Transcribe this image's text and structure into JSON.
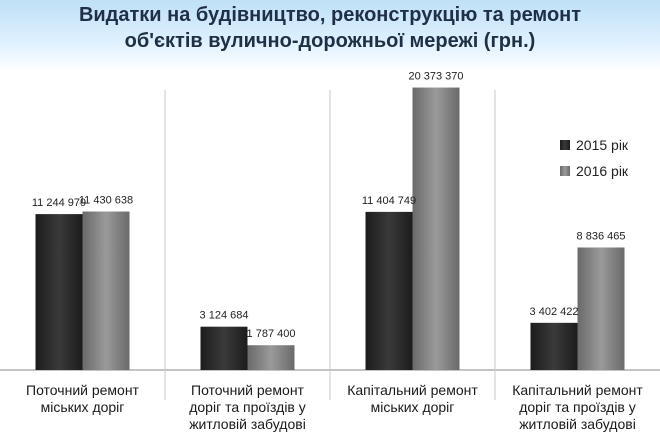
{
  "chart_data": {
    "type": "bar",
    "title": "Видатки на  будівництво, реконструкцію та ремонт об'єктів вулично-дорожньої мережі (грн.)",
    "title_line1": "Видатки на  будівництво, реконструкцію та ремонт",
    "title_line2": "об'єктів вулично-дорожньої мережі (грн.)",
    "categories": [
      [
        "Поточний ремонт",
        "міських доріг"
      ],
      [
        "Поточний ремонт",
        "доріг та проїздів у",
        "житловій забудові"
      ],
      [
        "Капітальний ремонт",
        "міських доріг"
      ],
      [
        "Капітальний ремонт",
        "доріг та проїздів у",
        "житловій забудові"
      ]
    ],
    "series": [
      {
        "name": "2015 рік",
        "values": [
          11244979,
          3124684,
          11404749,
          3402422
        ],
        "labels": [
          "11 244 979",
          "3 124 684",
          "11 404 749",
          "3 402 422"
        ],
        "color": "#2b2b2b"
      },
      {
        "name": "2016 рік",
        "values": [
          11430638,
          1787400,
          20373370,
          8836465
        ],
        "labels": [
          "11 430 638",
          "1 787 400",
          "20 373 370",
          "8 836 465"
        ],
        "color": "#7d7d7d"
      }
    ],
    "ylim": [
      0,
      22000000
    ],
    "grid": false,
    "legend_position": "right"
  }
}
